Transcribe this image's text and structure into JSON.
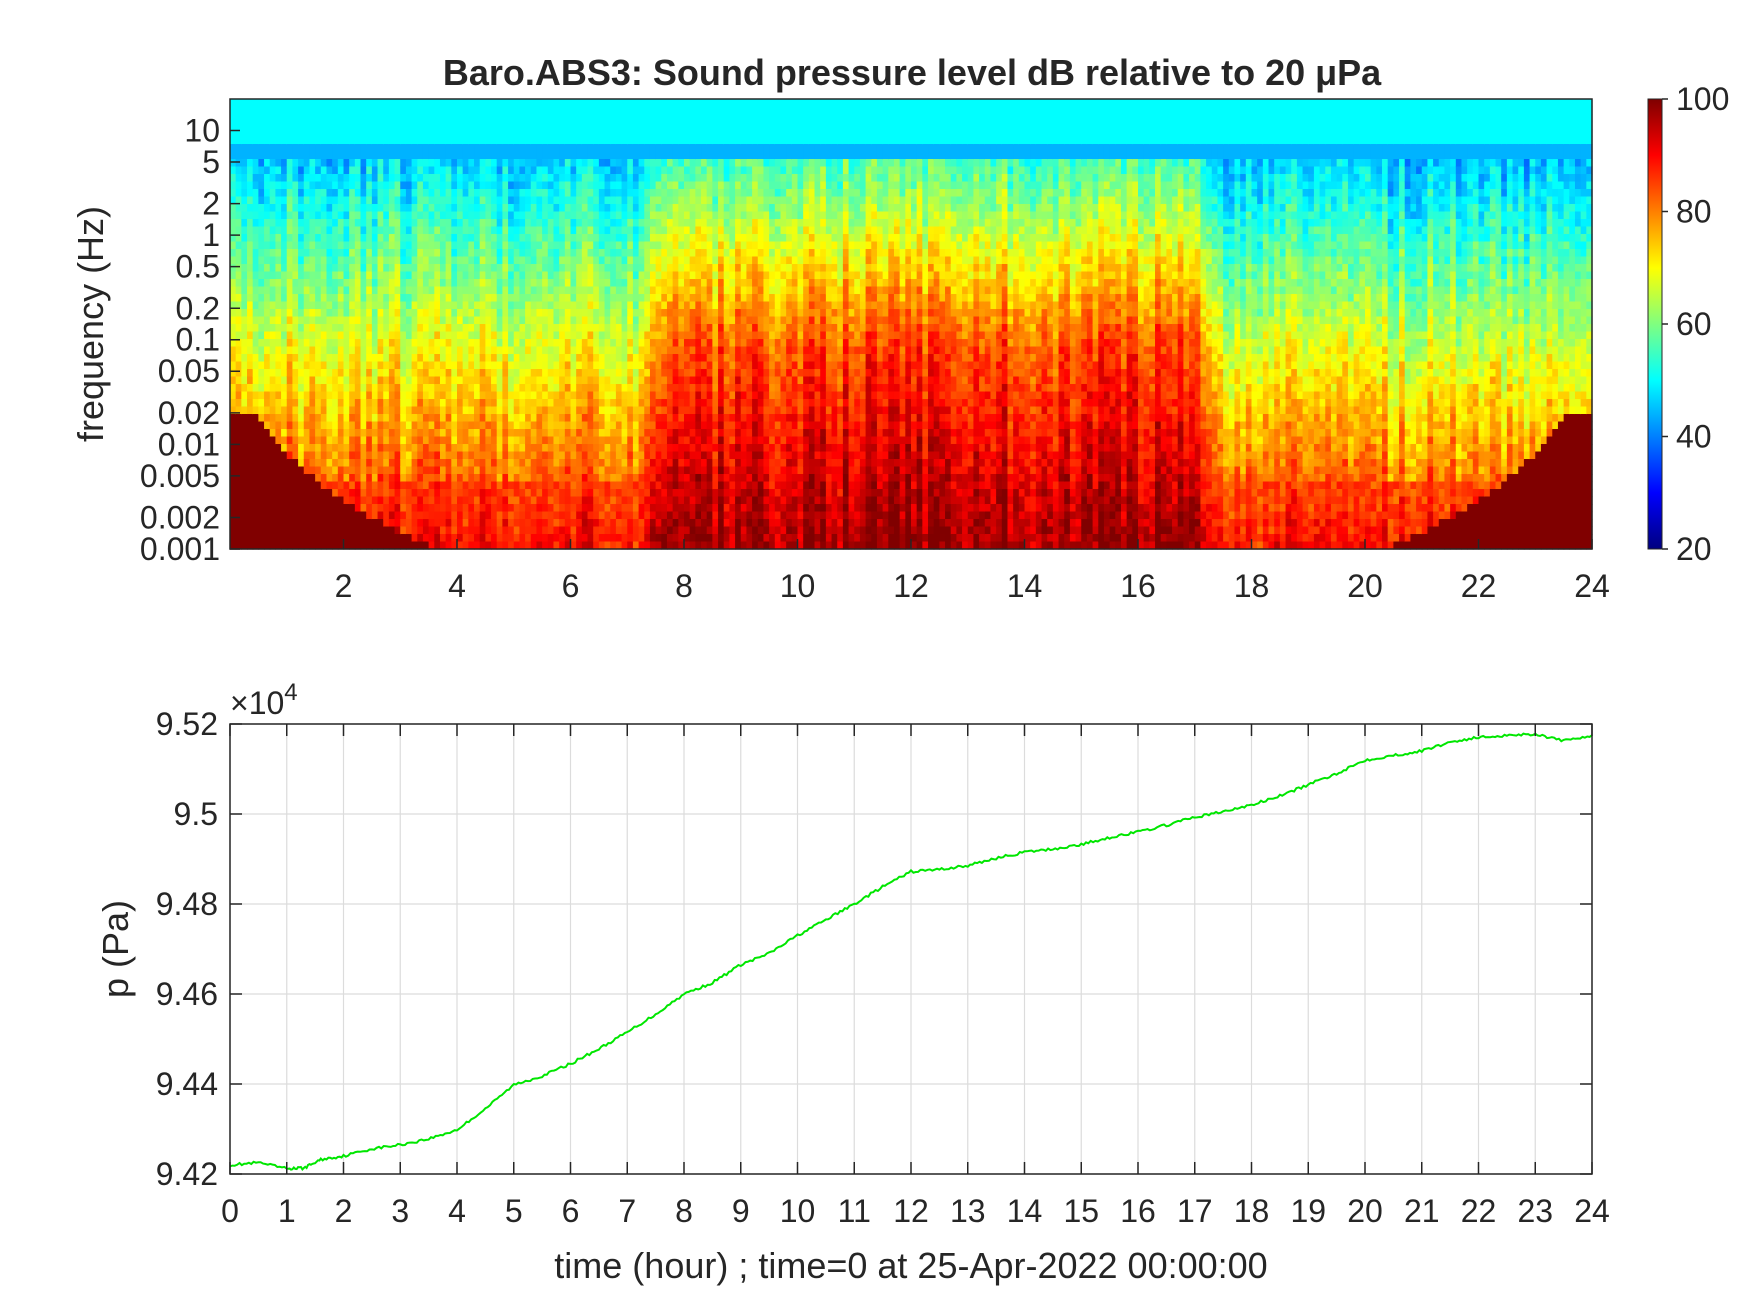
{
  "chart_data": [
    {
      "type": "heatmap",
      "title": "Baro.ABS3: Sound pressure level dB relative to 20 μPa",
      "xlabel": "",
      "ylabel": "frequency (Hz)",
      "xlim": [
        0,
        24
      ],
      "x_ticks": [
        "2",
        "4",
        "6",
        "8",
        "10",
        "12",
        "14",
        "16",
        "18",
        "20",
        "22",
        "24"
      ],
      "y_scale": "log",
      "ylim": [
        0.001,
        20
      ],
      "y_ticks": [
        {
          "value": 10,
          "label": "10"
        },
        {
          "value": 5,
          "label": "5"
        },
        {
          "value": 2,
          "label": "2"
        },
        {
          "value": 1,
          "label": "1"
        },
        {
          "value": 0.5,
          "label": "0.5"
        },
        {
          "value": 0.2,
          "label": "0.2"
        },
        {
          "value": 0.1,
          "label": "0.1"
        },
        {
          "value": 0.05,
          "label": "0.05"
        },
        {
          "value": 0.02,
          "label": "0.02"
        },
        {
          "value": 0.01,
          "label": "0.01"
        },
        {
          "value": 0.005,
          "label": "0.005"
        },
        {
          "value": 0.002,
          "label": "0.002"
        },
        {
          "value": 0.001,
          "label": "0.001"
        }
      ],
      "colormap": "jet",
      "colorbar": {
        "range": [
          20,
          100
        ],
        "ticks": [
          "20",
          "40",
          "60",
          "80",
          "100"
        ]
      },
      "colorbar_placement": "right",
      "description_levels_db": {
        "high_freq_band_above_5Hz": 50,
        "quiet_periods_hours": [
          [
            0,
            8
          ],
          [
            17.5,
            24
          ]
        ],
        "loud_period_hours": [
          8,
          17
        ],
        "low_freq_floor_db": 85
      }
    },
    {
      "type": "line",
      "xlabel": "time (hour) ; time=0 at 25-Apr-2022 00:00:00",
      "ylabel": "p (Pa)",
      "y_exponent_label": "×10",
      "y_exponent_power": "4",
      "xlim": [
        0,
        24
      ],
      "ylim": [
        9.42,
        9.52
      ],
      "x_ticks": [
        "0",
        "1",
        "2",
        "3",
        "4",
        "5",
        "6",
        "7",
        "8",
        "9",
        "10",
        "11",
        "12",
        "13",
        "14",
        "15",
        "16",
        "17",
        "18",
        "19",
        "20",
        "21",
        "22",
        "23",
        "24"
      ],
      "y_ticks": [
        "9.42",
        "9.44",
        "9.46",
        "9.48",
        "9.5",
        "9.52"
      ],
      "grid": true,
      "line_color": "#00e600",
      "series": [
        {
          "x": [
            0,
            0.5,
            1.0,
            1.3,
            1.6,
            2,
            2.5,
            3,
            3.5,
            4,
            4.5,
            5,
            5.5,
            6,
            6.5,
            7,
            7.5,
            8,
            8.5,
            9,
            9.5,
            10,
            10.5,
            11,
            11.5,
            12,
            12.5,
            13,
            13.5,
            14,
            14.5,
            15,
            15.5,
            16,
            16.5,
            17,
            17.5,
            18,
            18.5,
            19,
            19.5,
            20,
            20.5,
            21,
            21.5,
            22,
            22.5,
            23,
            23.5,
            24
          ],
          "y": [
            9.422,
            9.4225,
            9.4212,
            9.4213,
            9.4232,
            9.424,
            9.4256,
            9.4265,
            9.4278,
            9.4298,
            9.4345,
            9.4398,
            9.4418,
            9.4445,
            9.4478,
            9.4515,
            9.4555,
            9.46,
            9.4625,
            9.4665,
            9.469,
            9.473,
            9.4765,
            9.48,
            9.4838,
            9.4872,
            9.4877,
            9.4885,
            9.4902,
            9.4915,
            9.4922,
            9.4932,
            9.4948,
            9.496,
            9.4975,
            9.4993,
            9.5005,
            9.502,
            9.504,
            9.5065,
            9.509,
            9.512,
            9.513,
            9.514,
            9.516,
            9.517,
            9.5175,
            9.5178,
            9.5162,
            9.5175
          ]
        }
      ]
    }
  ]
}
